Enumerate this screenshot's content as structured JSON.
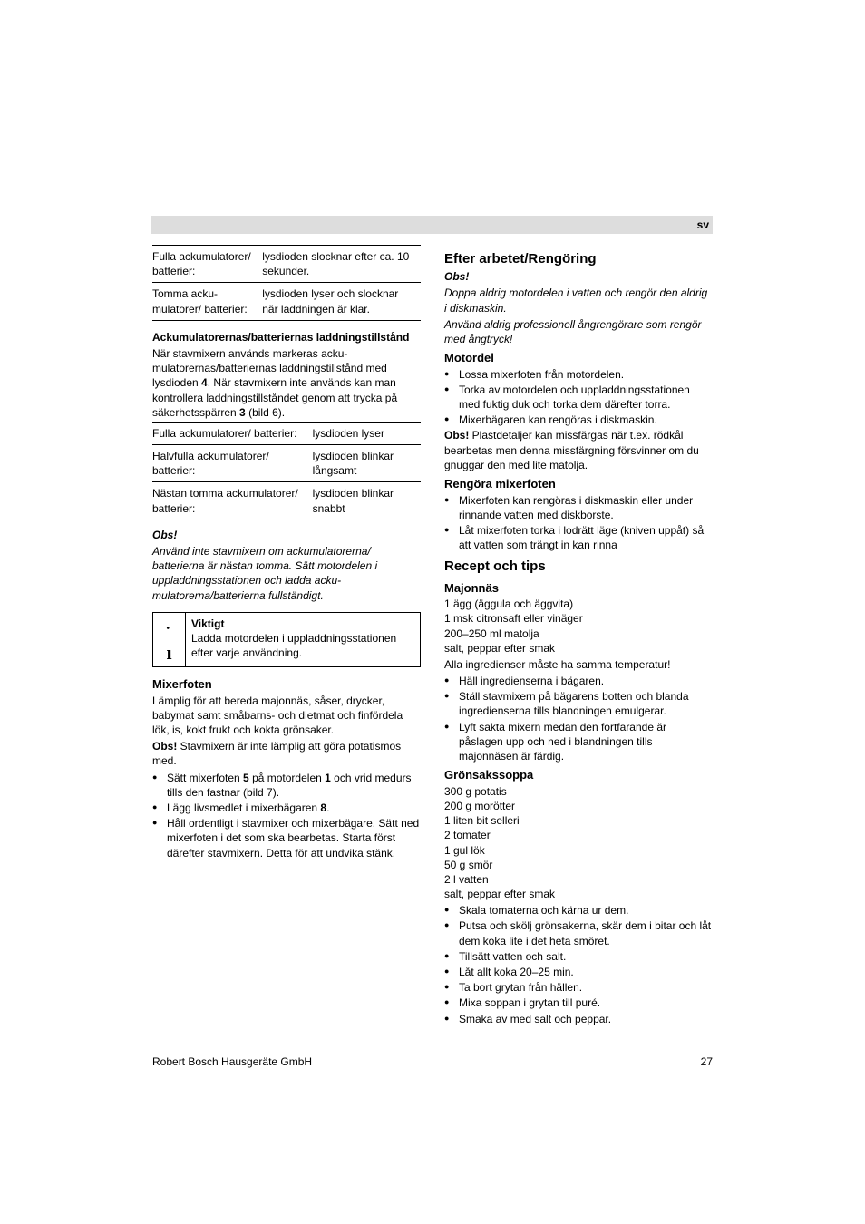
{
  "lang": "sv",
  "left": {
    "t1": {
      "r1c1": "Fulla acku­mulatorer/ batterier:",
      "r1c2": "lysdioden slocknar efter ca. 10 sekunder.",
      "r2c1": "Tomma acku­mulatorer/ batterier:",
      "r2c2": "lysdioden lyser och slocknar när laddningen är klar."
    },
    "h1": "Ackumulatorernas/batteriernas laddningstillstånd",
    "p1": "När stavmixern används markeras acku­mulatorernas/batteriernas laddningstillstånd med lysdioden ",
    "p1num": "4",
    "p1b": ". När stavmixern inte används kan man kontrollera laddningstillståndet genom att trycka på säkerhetsspärren ",
    "p1num2": "3",
    "p1c": " (bild 6).",
    "t2": {
      "r1c1": "Fulla acku­mulatorer/ batterier:",
      "r1c2": "lysdioden lyser",
      "r2c1": "Halvfulla acku­mulatorer/ batterier:",
      "r2c2": "lysdioden blinkar långsamt",
      "r3c1": "Nästan tomma ackumulatorer/ batterier:",
      "r3c2": "lysdioden blinkar snabbt"
    },
    "obs_title": "Obs!",
    "obs_text": "Använd inte stavmixern om ackumulatorerna/ batterierna är nästan tomma. Sätt motordelen i uppladdningsstationen och ladda acku­mulatorerna/batterierna fullständigt.",
    "info_h": "Viktigt",
    "info_t": "Ladda motordelen i uppladdnings­stationen efter varje användning.",
    "mix_h": "Mixerfoten",
    "mix_p": "Lämplig för att bereda majonnäs, såser, drycker, babymat samt småbarns- och dietmat och finfördela lök, is, kokt frukt och kokta grönsaker.",
    "mix_obs_lead": "Obs! ",
    "mix_obs": "Stavmixern är inte lämplig att göra potatismos med.",
    "mix_li": [
      {
        "a": "Sätt mixerfoten ",
        "n1": "5",
        "b": " på motordelen ",
        "n2": "1",
        "c": " och vrid medurs tills den fastnar (bild 7)."
      },
      {
        "a": "Lägg livsmedlet i mixerbägaren ",
        "n1": "8",
        "b": ".",
        "n2": "",
        "c": ""
      },
      {
        "a": "Håll ordentligt i stavmixer och mixerbägare. Sätt ned mixerfoten i det som ska bearbetas. Starta först därefter stavmixern. Detta för att undvika stänk."
      }
    ]
  },
  "right": {
    "h1": "Efter arbetet/Rengöring",
    "obs_t": "Obs!",
    "obs1": "Doppa aldrig motordelen i vatten och rengör den aldrig i diskmaskin.",
    "obs2": "Använd aldrig professionell ångrengörare som rengör med ångtryck!",
    "mot_h": "Motordel",
    "mot_li": [
      "Lossa mixerfoten från motordelen.",
      "Torka av motordelen och uppladdningsstationen med fuktig duk och torka dem därefter torra.",
      "Mixerbägaren kan rengöras i diskmaskin."
    ],
    "mot_obs_lead": "Obs! ",
    "mot_obs": "Plastdetaljer kan missfärgas när t.ex. rödkål bearbetas men denna missfärgning försvinner om du gnuggar den med lite matolja.",
    "reng_h": "Rengöra mixerfoten",
    "reng_li": [
      "Mixerfoten kan rengöras i diskmaskin eller under rinnande vatten med diskborste.",
      "Låt mixerfoten torka i lodrätt läge (kniven uppåt) så att vatten som trängt in kan rinna"
    ],
    "rec_h": "Recept och tips",
    "maj_h": "Majonnäs",
    "maj_ing": [
      "1 ägg (äggula och äggvita)",
      "1 msk citronsaft eller vinäger",
      "200–250 ml matolja",
      "salt, peppar efter smak"
    ],
    "maj_note": "Alla ingredienser måste ha samma temperatur!",
    "maj_li": [
      "Häll ingredienserna i bägaren.",
      "Ställ stavmixern på bägarens botten och blanda ingredienserna tills blandningen emulgerar.",
      "Lyft sakta mixern medan den fortfarande är påslagen upp och ned i blandningen tills majonnäsen är färdig."
    ],
    "gro_h": "Grönsakssoppa",
    "gro_ing": [
      "300 g potatis",
      "200 g morötter",
      "1 liten bit selleri",
      "2 tomater",
      "1 gul lök",
      "50 g smör",
      "2 l vatten",
      "salt, peppar efter smak"
    ],
    "gro_li": [
      "Skala tomaterna och kärna ur dem.",
      "Putsa och skölj grönsakerna, skär dem i bitar och låt dem koka lite i det heta smöret.",
      "Tillsätt vatten och salt.",
      "Låt allt koka 20–25 min.",
      "Ta bort grytan från hällen.",
      "Mixa soppan i grytan till puré.",
      "Smaka av med salt och peppar."
    ]
  },
  "footer": {
    "brand": "Robert Bosch Hausgeräte GmbH",
    "page": "27"
  }
}
